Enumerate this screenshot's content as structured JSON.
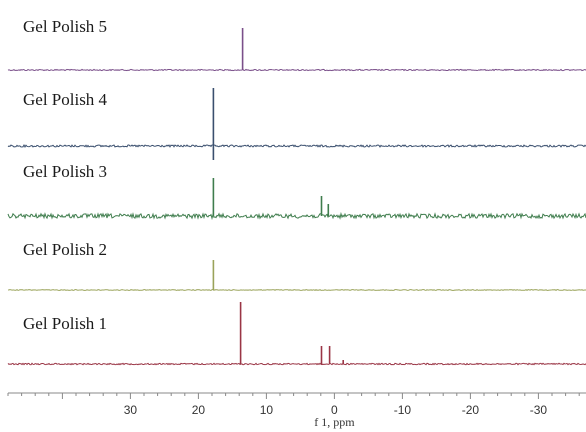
{
  "chart_data": {
    "type": "line",
    "title": "",
    "xlabel": "f 1, ppm",
    "ylabel": "",
    "xlim": [
      48,
      -37
    ],
    "x_reversed": true,
    "x_ticks": [
      30,
      20,
      10,
      0,
      -10,
      -20,
      -30
    ],
    "x_tick_labels": [
      "30",
      "20",
      "10",
      "0",
      "-10",
      "-20",
      "-30"
    ],
    "grid": false,
    "layout": "stacked",
    "series": [
      {
        "name": "Gel Polish 5",
        "color": "#7a4f8a",
        "noise": 0.6,
        "peaks": [
          {
            "ppm": 13.5,
            "height": 42
          }
        ]
      },
      {
        "name": "Gel Polish 4",
        "color": "#3a4f6e",
        "noise": 1.0,
        "peaks": [
          {
            "ppm": 17.8,
            "height": 58,
            "dip": 14
          }
        ]
      },
      {
        "name": "Gel Polish 3",
        "color": "#3f7d4d",
        "noise": 2.2,
        "peaks": [
          {
            "ppm": 17.8,
            "height": 38
          },
          {
            "ppm": 1.9,
            "height": 20
          },
          {
            "ppm": 0.9,
            "height": 12
          }
        ]
      },
      {
        "name": "Gel Polish 2",
        "color": "#9aa35a",
        "noise": 0.4,
        "peaks": [
          {
            "ppm": 17.8,
            "height": 30
          }
        ]
      },
      {
        "name": "Gel Polish 1",
        "color": "#9a3545",
        "noise": 0.7,
        "peaks": [
          {
            "ppm": 13.8,
            "height": 62
          },
          {
            "ppm": 1.9,
            "height": 18
          },
          {
            "ppm": 0.7,
            "height": 18
          },
          {
            "ppm": -1.3,
            "height": 4
          }
        ]
      }
    ]
  }
}
